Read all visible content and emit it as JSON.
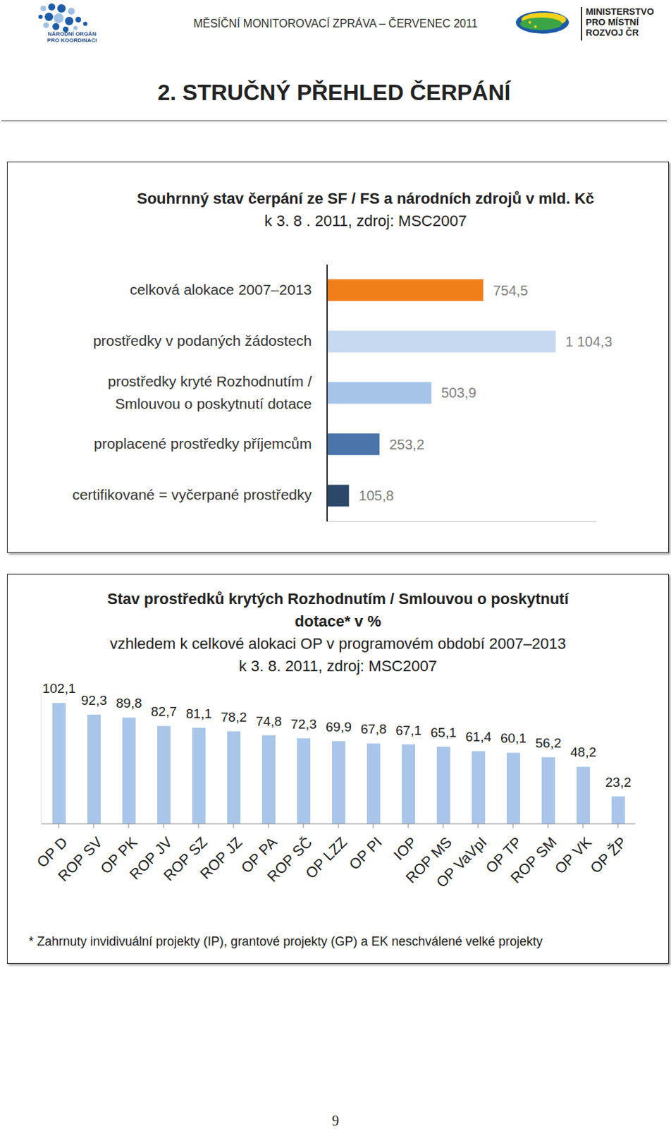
{
  "header": {
    "left_logo": "NÁRODNÍ ORGÁN\nPRO KOORDINACI",
    "title": "MĚSÍČNÍ MONITOROVACÍ ZPRÁVA – ČERVENEC 2011",
    "right_logo": "MINISTERSTVO\nPRO MÍSTNÍ\nROZVOJ ČR"
  },
  "heading": "2. STRUČNÝ PŘEHLED ČERPÁNÍ",
  "chart_data": [
    {
      "type": "bar",
      "orientation": "horizontal",
      "title": "Souhrnný stav čerpání ze SF / FS a národních zdrojů v mld. Kč",
      "subtitle": "k 3. 8 . 2011, zdroj: MSC2007",
      "categories": [
        "celková alokace 2007–2013",
        "prostředky v podaných žádostech",
        "prostředky kryté Rozhodnutím /\nSmlouvou o poskytnutí  dotace",
        "proplacené prostředky příjemcům",
        "certifikované = vyčerpané prostředky"
      ],
      "values": [
        754.5,
        1104.3,
        503.9,
        253.2,
        105.8
      ],
      "value_labels": [
        "754,5",
        "1 104,3",
        "503,9",
        "253,2",
        "105,8"
      ],
      "colors": [
        "#f07f1a",
        "#c6d9f1",
        "#a6c4e8",
        "#4a74aa",
        "#2b4769"
      ],
      "xlim": [
        0,
        1300
      ],
      "data_labels": true,
      "tick_labels": "y"
    },
    {
      "type": "bar",
      "title": "Stav prostředků krytých Rozhodnutím / Smlouvou o poskytnutí\ndotace* v %",
      "subtitle": "vzhledem k celkové alokaci OP v programovém období 2007–2013\nk 3. 8. 2011, zdroj: MSC2007",
      "categories": [
        "OP D",
        "ROP SV",
        "OP PK",
        "ROP JV",
        "ROP SZ",
        "ROP JZ",
        "OP PA",
        "ROP SČ",
        "OP LZZ",
        "OP PI",
        "IOP",
        "ROP MS",
        "OP VaVpI",
        "OP TP",
        "ROP SM",
        "OP VK",
        "OP ŽP"
      ],
      "values": [
        102.1,
        92.3,
        89.8,
        82.7,
        81.1,
        78.2,
        74.8,
        72.3,
        69.9,
        67.8,
        67.1,
        65.1,
        61.4,
        60.1,
        56.2,
        48.2,
        23.2
      ],
      "value_labels": [
        "102,1",
        "92,3",
        "89,8",
        "82,7",
        "81,1",
        "78,2",
        "74,8",
        "72,3",
        "69,9",
        "67,8",
        "67,1",
        "65,1",
        "61,4",
        "60,1",
        "56,2",
        "48,2",
        "23,2"
      ],
      "color": "#a9c6ea",
      "ylim": [
        0,
        110
      ],
      "data_labels": true,
      "tick_labels": "x"
    }
  ],
  "footnote": "* Zahrnuty invidivuální projekty (IP), grantové projekty (GP) a EK neschválené velké projekty",
  "page_number": 9
}
